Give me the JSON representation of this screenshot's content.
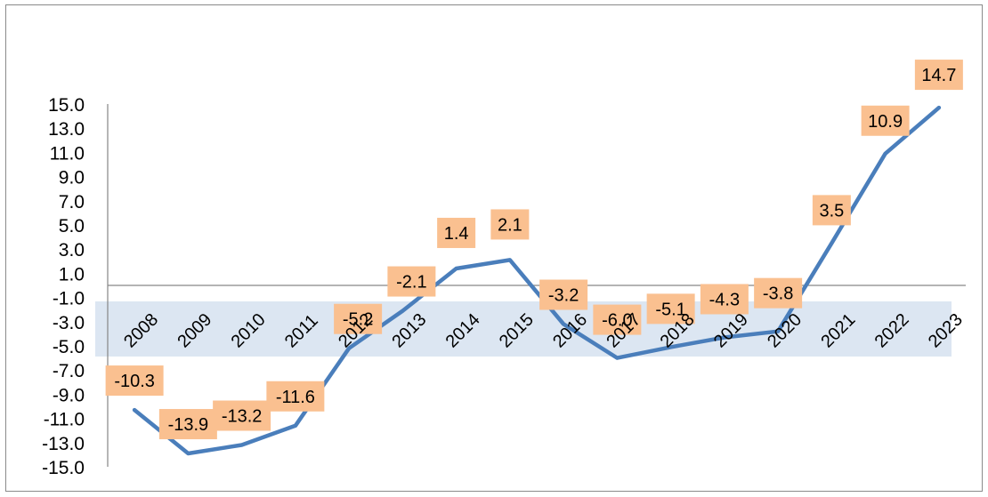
{
  "chart_data": {
    "type": "line",
    "title": "",
    "xlabel": "",
    "ylabel": "",
    "categories": [
      "2008",
      "2009",
      "2010",
      "2011",
      "2012",
      "2013",
      "2014",
      "2015",
      "2016",
      "2017",
      "2018",
      "2019",
      "2020",
      "2021",
      "2022",
      "2023"
    ],
    "series": [
      {
        "values": [
          -10.3,
          -13.9,
          -13.2,
          -11.6,
          -5.2,
          -2.1,
          1.4,
          2.1,
          -3.2,
          -6.0,
          -5.1,
          -4.3,
          -3.8,
          3.5,
          10.9,
          14.7
        ],
        "data_labels": [
          "-10.3",
          "-13.9",
          "-13.2",
          "-11.6",
          "-5.2",
          "-2.1",
          "1.4",
          "2.1",
          "-3.2",
          "-6.0",
          "-5.1",
          "-4.3",
          "-3.8",
          "3.5",
          "10.9",
          "14.7"
        ]
      }
    ],
    "y_ticks": [
      "15.0",
      "13.0",
      "11.0",
      "9.0",
      "7.0",
      "5.0",
      "3.0",
      "1.0",
      "-1.0",
      "-3.0",
      "-5.0",
      "-7.0",
      "-9.0",
      "-11.0",
      "-13.0",
      "-15.0"
    ],
    "ylim": [
      -15,
      15
    ],
    "grid": false,
    "legend": "none",
    "colors": {
      "line": "#4a7ebb",
      "label_fill": "#fac090",
      "category_band": "#dce6f2",
      "axis": "#868686"
    }
  }
}
